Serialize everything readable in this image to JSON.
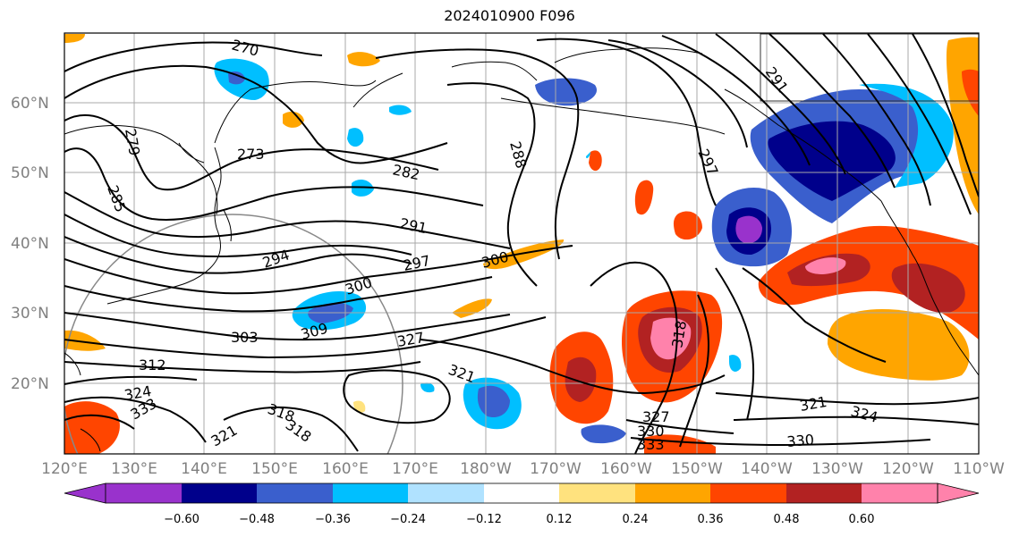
{
  "title": "2024010900 F096",
  "map": {
    "lon_labels": [
      "120°E",
      "130°E",
      "140°E",
      "150°E",
      "160°E",
      "170°E",
      "180°W",
      "170°W",
      "160°W",
      "150°W",
      "140°W",
      "130°W",
      "120°W",
      "110°W"
    ],
    "lat_labels": [
      "60°N",
      "50°N",
      "40°N",
      "30°N",
      "20°N"
    ],
    "contour_labels": [
      "270",
      "273",
      "279",
      "285",
      "288",
      "291",
      "282",
      "291",
      "294",
      "297",
      "300",
      "303",
      "309",
      "312",
      "318",
      "318",
      "321",
      "321",
      "324",
      "327",
      "330",
      "333",
      "297",
      "318",
      "321",
      "324",
      "300",
      "327",
      "330",
      "333"
    ]
  },
  "colorbar": {
    "ticks": [
      "−0.60",
      "−0.48",
      "−0.36",
      "−0.24",
      "−0.12",
      "0.12",
      "0.24",
      "0.36",
      "0.48",
      "0.60"
    ],
    "colors": [
      "#9932cc",
      "#00008b",
      "#3a5fcd",
      "#00bfff",
      "#b0e2ff",
      "#ffffff",
      "#ffe27e",
      "#ffa500",
      "#ff4500",
      "#b22222",
      "#ff82ab",
      "#ff82ab"
    ]
  }
}
